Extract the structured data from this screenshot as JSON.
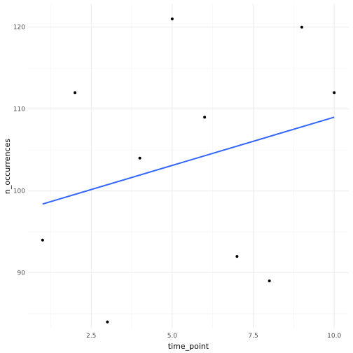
{
  "chart_data": {
    "type": "scatter",
    "title": "",
    "xlabel": "time_point",
    "ylabel": "n_occurrences",
    "xlim": [
      0.55,
      10.45
    ],
    "ylim": [
      83.2,
      122.8
    ],
    "x_ticks": [
      2.5,
      5.0,
      7.5,
      10.0
    ],
    "x_tick_labels": [
      "2.5",
      "5.0",
      "7.5",
      "10.0"
    ],
    "x_minor_ticks": [
      1.25,
      3.75,
      6.25,
      8.75
    ],
    "y_ticks": [
      90,
      100,
      110,
      120
    ],
    "y_tick_labels": [
      "90",
      "100",
      "110",
      "120"
    ],
    "y_minor_ticks": [
      85,
      95,
      105,
      115
    ],
    "grid": true,
    "series": [
      {
        "type": "scatter",
        "color": "#000000",
        "x": [
          1,
          2,
          3,
          4,
          5,
          6,
          7,
          8,
          9,
          10
        ],
        "y": [
          94,
          112,
          84,
          104,
          121,
          109,
          92,
          89,
          120,
          112
        ]
      },
      {
        "type": "line",
        "color": "#3366ff",
        "x": [
          1,
          10
        ],
        "y": [
          98.4,
          109.0
        ]
      }
    ]
  }
}
